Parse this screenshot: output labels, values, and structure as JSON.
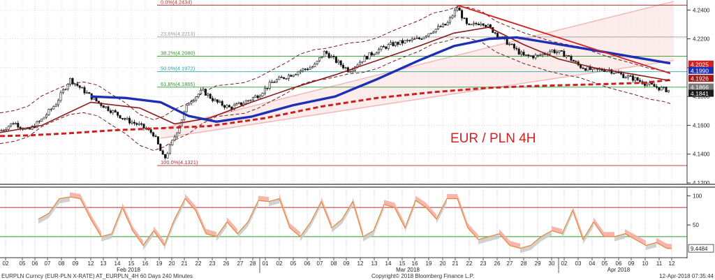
{
  "chart_data": {
    "type": "candlestick",
    "instrument": "EUR / PLN 4H",
    "y_axis": {
      "ticks": [
        "4.2400",
        "4.2200",
        "4.2000",
        "4.1800",
        "4.1600",
        "4.1400",
        "4.1200"
      ],
      "range": [
        4.12,
        4.246
      ]
    },
    "price_labels": [
      {
        "label": "4.2025",
        "value": 4.2025,
        "color": "#d62020"
      },
      {
        "label": "4.1990",
        "value": 4.199,
        "color": "#1f2fb5"
      },
      {
        "label": "4.1926",
        "value": 4.1926,
        "color": "#a01818"
      },
      {
        "label": "4.1866",
        "value": 4.1866,
        "color": "#7a7a7a"
      },
      {
        "label": "4.1841",
        "value": 4.1841,
        "color": "#1a1a1a"
      }
    ],
    "fib_levels": [
      {
        "label": "0.0%(4.2434)",
        "value": 4.2434,
        "color": "#b03030"
      },
      {
        "label": "23.6%(4.2213)",
        "value": 4.2213,
        "color": "#999999"
      },
      {
        "label": "38.2%(4.2080)",
        "value": 4.208,
        "color": "#2a9a2a"
      },
      {
        "label": "50.0%(4.1972)",
        "value": 4.1972,
        "color": "#26a6a6"
      },
      {
        "label": "61.8%(4.1865)",
        "value": 4.1865,
        "color": "#2a9a2a"
      },
      {
        "label": "100.0%(4.1321)",
        "value": 4.1321,
        "color": "#b03030"
      }
    ],
    "sma_200": [
      {
        "x": 0,
        "y": 4.1525
      },
      {
        "x": 40,
        "y": 4.153
      },
      {
        "x": 100,
        "y": 4.1545
      },
      {
        "x": 160,
        "y": 4.1565
      },
      {
        "x": 230,
        "y": 4.158
      },
      {
        "x": 300,
        "y": 4.1595
      },
      {
        "x": 380,
        "y": 4.165
      },
      {
        "x": 460,
        "y": 4.173
      },
      {
        "x": 540,
        "y": 4.179
      },
      {
        "x": 620,
        "y": 4.183
      },
      {
        "x": 700,
        "y": 4.186
      },
      {
        "x": 760,
        "y": 4.1872
      },
      {
        "x": 820,
        "y": 4.188
      },
      {
        "x": 880,
        "y": 4.1888
      },
      {
        "x": 920,
        "y": 4.1895
      },
      {
        "x": 960,
        "y": 4.1915
      }
    ],
    "sma_100": [
      {
        "x": 130,
        "y": 4.18
      },
      {
        "x": 180,
        "y": 4.179
      },
      {
        "x": 230,
        "y": 4.176
      },
      {
        "x": 270,
        "y": 4.1665
      },
      {
        "x": 310,
        "y": 4.1625
      },
      {
        "x": 360,
        "y": 4.166
      },
      {
        "x": 420,
        "y": 4.174
      },
      {
        "x": 480,
        "y": 4.18
      },
      {
        "x": 540,
        "y": 4.192
      },
      {
        "x": 600,
        "y": 4.205
      },
      {
        "x": 650,
        "y": 4.215
      },
      {
        "x": 700,
        "y": 4.22
      },
      {
        "x": 740,
        "y": 4.221
      },
      {
        "x": 790,
        "y": 4.217
      },
      {
        "x": 840,
        "y": 4.213
      },
      {
        "x": 900,
        "y": 4.208
      },
      {
        "x": 960,
        "y": 4.203
      }
    ],
    "sma_50": [
      {
        "x": 0,
        "y": 4.155
      },
      {
        "x": 60,
        "y": 4.16
      },
      {
        "x": 130,
        "y": 4.176
      },
      {
        "x": 200,
        "y": 4.172
      },
      {
        "x": 250,
        "y": 4.161
      },
      {
        "x": 300,
        "y": 4.165
      },
      {
        "x": 360,
        "y": 4.176
      },
      {
        "x": 420,
        "y": 4.186
      },
      {
        "x": 480,
        "y": 4.195
      },
      {
        "x": 540,
        "y": 4.205
      },
      {
        "x": 600,
        "y": 4.215
      },
      {
        "x": 650,
        "y": 4.224
      },
      {
        "x": 700,
        "y": 4.228
      },
      {
        "x": 750,
        "y": 4.216
      },
      {
        "x": 800,
        "y": 4.206
      },
      {
        "x": 850,
        "y": 4.2
      },
      {
        "x": 900,
        "y": 4.196
      },
      {
        "x": 960,
        "y": 4.191
      }
    ],
    "price_path": [
      {
        "x": 0,
        "y": 4.156
      },
      {
        "x": 20,
        "y": 4.162
      },
      {
        "x": 40,
        "y": 4.156
      },
      {
        "x": 60,
        "y": 4.164
      },
      {
        "x": 80,
        "y": 4.175
      },
      {
        "x": 100,
        "y": 4.192
      },
      {
        "x": 120,
        "y": 4.184
      },
      {
        "x": 140,
        "y": 4.176
      },
      {
        "x": 160,
        "y": 4.17
      },
      {
        "x": 180,
        "y": 4.164
      },
      {
        "x": 200,
        "y": 4.16
      },
      {
        "x": 220,
        "y": 4.154
      },
      {
        "x": 235,
        "y": 4.136
      },
      {
        "x": 250,
        "y": 4.152
      },
      {
        "x": 270,
        "y": 4.176
      },
      {
        "x": 290,
        "y": 4.184
      },
      {
        "x": 310,
        "y": 4.176
      },
      {
        "x": 330,
        "y": 4.172
      },
      {
        "x": 350,
        "y": 4.176
      },
      {
        "x": 370,
        "y": 4.181
      },
      {
        "x": 390,
        "y": 4.19
      },
      {
        "x": 410,
        "y": 4.194
      },
      {
        "x": 430,
        "y": 4.198
      },
      {
        "x": 450,
        "y": 4.201
      },
      {
        "x": 465,
        "y": 4.211
      },
      {
        "x": 480,
        "y": 4.205
      },
      {
        "x": 500,
        "y": 4.198
      },
      {
        "x": 520,
        "y": 4.206
      },
      {
        "x": 540,
        "y": 4.212
      },
      {
        "x": 560,
        "y": 4.216
      },
      {
        "x": 580,
        "y": 4.218
      },
      {
        "x": 600,
        "y": 4.22
      },
      {
        "x": 620,
        "y": 4.226
      },
      {
        "x": 640,
        "y": 4.23
      },
      {
        "x": 655,
        "y": 4.242
      },
      {
        "x": 670,
        "y": 4.228
      },
      {
        "x": 690,
        "y": 4.232
      },
      {
        "x": 710,
        "y": 4.224
      },
      {
        "x": 730,
        "y": 4.216
      },
      {
        "x": 750,
        "y": 4.208
      },
      {
        "x": 770,
        "y": 4.208
      },
      {
        "x": 790,
        "y": 4.212
      },
      {
        "x": 810,
        "y": 4.209
      },
      {
        "x": 830,
        "y": 4.201
      },
      {
        "x": 850,
        "y": 4.198
      },
      {
        "x": 870,
        "y": 4.199
      },
      {
        "x": 890,
        "y": 4.195
      },
      {
        "x": 910,
        "y": 4.192
      },
      {
        "x": 930,
        "y": 4.188
      },
      {
        "x": 950,
        "y": 4.185
      },
      {
        "x": 960,
        "y": 4.1841
      }
    ],
    "trend_down": {
      "from": {
        "x": 655,
        "y": 4.2434
      },
      "to": {
        "x": 960,
        "y": 4.196
      }
    },
    "channel_lines": [
      {
        "from": {
          "x": 230,
          "y": 4.1575
        },
        "to": {
          "x": 965,
          "y": 4.246
        }
      },
      {
        "from": {
          "x": 230,
          "y": 4.151
        },
        "to": {
          "x": 965,
          "y": 4.205
        }
      }
    ],
    "oscillator": {
      "value_label": "9.4484",
      "range": [
        0,
        110
      ],
      "ticks": [
        "100",
        "50"
      ],
      "levels": [
        {
          "value": 80,
          "color": "#b03030"
        },
        {
          "value": 30,
          "color": "#2a9a2a"
        }
      ],
      "k_line": [
        {
          "x": 55,
          "y": 60
        },
        {
          "x": 70,
          "y": 70
        },
        {
          "x": 85,
          "y": 95
        },
        {
          "x": 100,
          "y": 98
        },
        {
          "x": 115,
          "y": 95
        },
        {
          "x": 130,
          "y": 60
        },
        {
          "x": 145,
          "y": 30
        },
        {
          "x": 160,
          "y": 35
        },
        {
          "x": 175,
          "y": 80
        },
        {
          "x": 190,
          "y": 40
        },
        {
          "x": 205,
          "y": 15
        },
        {
          "x": 220,
          "y": 40
        },
        {
          "x": 235,
          "y": 15
        },
        {
          "x": 250,
          "y": 60
        },
        {
          "x": 265,
          "y": 95
        },
        {
          "x": 280,
          "y": 75
        },
        {
          "x": 295,
          "y": 35
        },
        {
          "x": 310,
          "y": 30
        },
        {
          "x": 325,
          "y": 55
        },
        {
          "x": 340,
          "y": 35
        },
        {
          "x": 355,
          "y": 55
        },
        {
          "x": 370,
          "y": 92
        },
        {
          "x": 385,
          "y": 90
        },
        {
          "x": 400,
          "y": 95
        },
        {
          "x": 415,
          "y": 45
        },
        {
          "x": 430,
          "y": 30
        },
        {
          "x": 445,
          "y": 55
        },
        {
          "x": 460,
          "y": 90
        },
        {
          "x": 475,
          "y": 45
        },
        {
          "x": 490,
          "y": 60
        },
        {
          "x": 505,
          "y": 90
        },
        {
          "x": 520,
          "y": 30
        },
        {
          "x": 535,
          "y": 40
        },
        {
          "x": 550,
          "y": 85
        },
        {
          "x": 565,
          "y": 80
        },
        {
          "x": 580,
          "y": 45
        },
        {
          "x": 595,
          "y": 92
        },
        {
          "x": 610,
          "y": 80
        },
        {
          "x": 625,
          "y": 60
        },
        {
          "x": 640,
          "y": 95
        },
        {
          "x": 655,
          "y": 95
        },
        {
          "x": 670,
          "y": 45
        },
        {
          "x": 685,
          "y": 25
        },
        {
          "x": 700,
          "y": 30
        },
        {
          "x": 715,
          "y": 35
        },
        {
          "x": 730,
          "y": 15
        },
        {
          "x": 745,
          "y": 10
        },
        {
          "x": 760,
          "y": 15
        },
        {
          "x": 775,
          "y": 30
        },
        {
          "x": 790,
          "y": 40
        },
        {
          "x": 805,
          "y": 35
        },
        {
          "x": 820,
          "y": 75
        },
        {
          "x": 835,
          "y": 25
        },
        {
          "x": 850,
          "y": 55
        },
        {
          "x": 865,
          "y": 30
        },
        {
          "x": 880,
          "y": 30
        },
        {
          "x": 895,
          "y": 35
        },
        {
          "x": 910,
          "y": 25
        },
        {
          "x": 925,
          "y": 15
        },
        {
          "x": 940,
          "y": 20
        },
        {
          "x": 955,
          "y": 10
        },
        {
          "x": 962,
          "y": 9.4
        }
      ]
    },
    "x_axis": {
      "ticks": [
        {
          "label": "02",
          "x": 8
        },
        {
          "label": "05",
          "x": 32
        },
        {
          "label": "06",
          "x": 50
        },
        {
          "label": "07",
          "x": 68
        },
        {
          "label": "08",
          "x": 88
        },
        {
          "label": "09",
          "x": 108
        },
        {
          "label": "12",
          "x": 130
        },
        {
          "label": "13",
          "x": 148
        },
        {
          "label": "14",
          "x": 168
        },
        {
          "label": "15",
          "x": 188
        },
        {
          "label": "16",
          "x": 208
        },
        {
          "label": "19",
          "x": 228
        },
        {
          "label": "20",
          "x": 246
        },
        {
          "label": "21",
          "x": 264
        },
        {
          "label": "22",
          "x": 284
        },
        {
          "label": "23",
          "x": 304
        },
        {
          "label": "26",
          "x": 324
        },
        {
          "label": "27",
          "x": 344
        },
        {
          "label": "28",
          "x": 362
        },
        {
          "label": "01",
          "x": 380
        },
        {
          "label": "02",
          "x": 400
        },
        {
          "label": "05",
          "x": 420
        },
        {
          "label": "06",
          "x": 440
        },
        {
          "label": "07",
          "x": 458
        },
        {
          "label": "08",
          "x": 478
        },
        {
          "label": "09",
          "x": 496
        },
        {
          "label": "12",
          "x": 516
        },
        {
          "label": "13",
          "x": 536
        },
        {
          "label": "14",
          "x": 556
        },
        {
          "label": "15",
          "x": 576
        },
        {
          "label": "16",
          "x": 594
        },
        {
          "label": "19",
          "x": 614
        },
        {
          "label": "20",
          "x": 634
        },
        {
          "label": "21",
          "x": 652
        },
        {
          "label": "22",
          "x": 672
        },
        {
          "label": "23",
          "x": 692
        },
        {
          "label": "26",
          "x": 712
        },
        {
          "label": "27",
          "x": 730
        },
        {
          "label": "28",
          "x": 750
        },
        {
          "label": "29",
          "x": 770
        },
        {
          "label": "30",
          "x": 790
        },
        {
          "label": "02",
          "x": 808
        },
        {
          "label": "03",
          "x": 828
        },
        {
          "label": "04",
          "x": 848
        },
        {
          "label": "05",
          "x": 866
        },
        {
          "label": "06",
          "x": 886
        },
        {
          "label": "09",
          "x": 904
        },
        {
          "label": "10",
          "x": 924
        },
        {
          "label": "11",
          "x": 944
        },
        {
          "label": "12",
          "x": 962
        }
      ],
      "months": [
        {
          "label": "Feb 2018",
          "x": 184
        },
        {
          "label": "Mar 2018",
          "x": 584
        },
        {
          "label": "Apr 2018",
          "x": 886
        }
      ]
    }
  },
  "footer": {
    "left": "EURPLN Curncy (EUR-PLN X-RATE) AT_EURPLN_4H 60 Days 240 Minutes",
    "center": "Copyright© 2018 Bloomberg Finance L.P.",
    "right": "12-Apr-2018 07:35:44"
  },
  "colors": {
    "sma50": "#8b1a1a",
    "sma100": "#1f2fb5",
    "sma200": "#cc2020",
    "trend": "#d62020",
    "channel": "#f2b6b6",
    "channel_fill": "#fbe4e4",
    "bollinger": "#7a1a1a",
    "candle": "#111111",
    "osc_k": "#e08a3a"
  }
}
